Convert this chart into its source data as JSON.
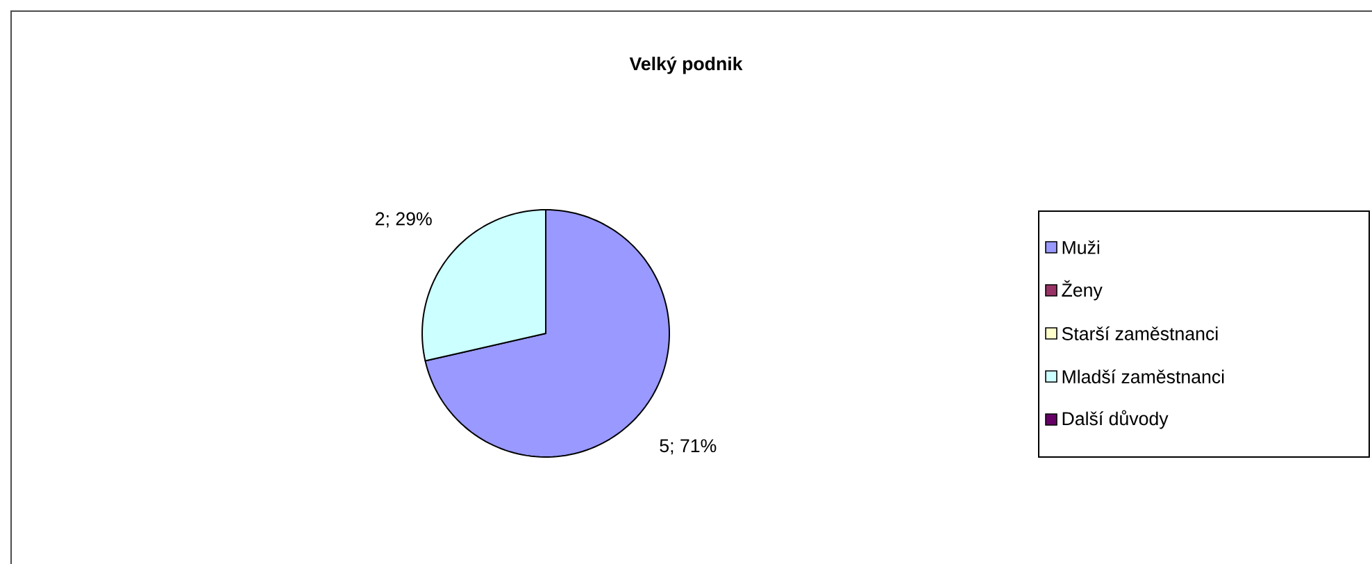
{
  "chart_data": {
    "type": "pie",
    "title": "Velký podnik",
    "categories": [
      "Muži",
      "Ženy",
      "Starší zaměstnanci",
      "Mladší zaměstnanci",
      "Další důvody"
    ],
    "values": [
      5,
      0,
      0,
      2,
      0
    ],
    "colors": [
      "#9999ff",
      "#993366",
      "#ffffcc",
      "#ccffff",
      "#660066"
    ],
    "value_labels": [
      "5; 71%",
      null,
      null,
      "2; 29%",
      null
    ],
    "legend": "right"
  }
}
